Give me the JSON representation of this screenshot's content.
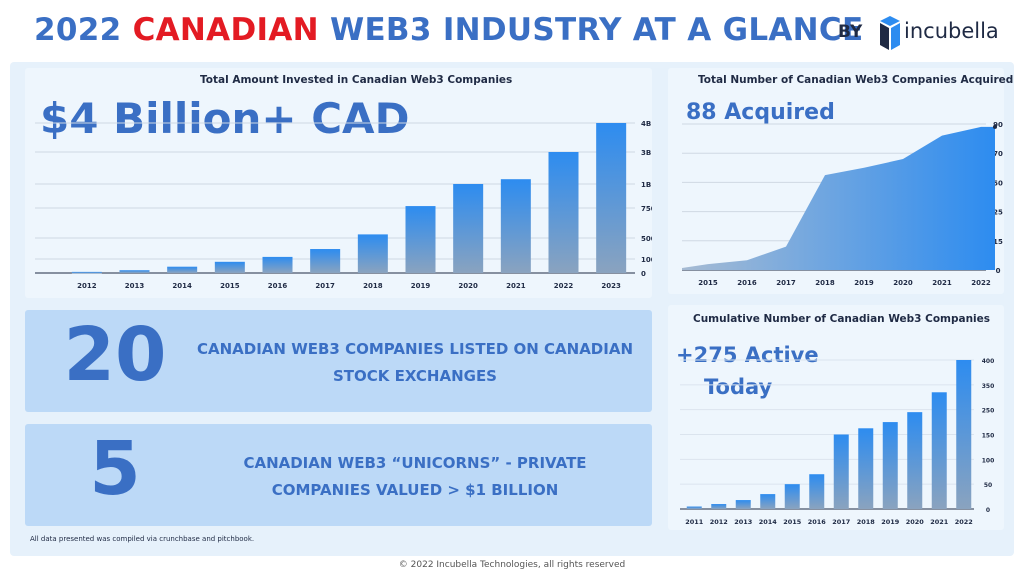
{
  "header": {
    "title_prefix": "2022",
    "title_highlight": "CANADIAN",
    "title_suffix": "WEB3 INDUSTRY AT A GLANCE",
    "by": "BY",
    "brand": "incubella"
  },
  "colors": {
    "title_blue": "#3a6fc4",
    "highlight_red": "#e31b23",
    "bar_top": "#2d8cf0",
    "bar_bottom": "#8aa3bf",
    "panel_bg": "#e6f1fb",
    "stat_bg": "#bcd9f7"
  },
  "stats": [
    {
      "number": "20",
      "line1": "CANADIAN WEB3 COMPANIES LISTED ON CANADIAN",
      "line2": "STOCK EXCHANGES"
    },
    {
      "number": "5",
      "line1": "CANADIAN WEB3 “UNICORNS” - PRIVATE",
      "line2": "COMPANIES VALUED > $1 BILLION"
    }
  ],
  "note": "All data presented was compiled via crunchbase and pitchbook.",
  "footer": "© 2022 Incubella Technologies, all rights reserved",
  "chart_data": [
    {
      "type": "bar",
      "title": "Total Amount Invested in Canadian Web3 Companies",
      "headline": "$4 Billion+ CAD",
      "categories": [
        "2012",
        "2013",
        "2014",
        "2015",
        "2016",
        "2017",
        "2018",
        "2019",
        "2020",
        "2021",
        "2022",
        "2023"
      ],
      "values": [
        8,
        20,
        45,
        80,
        140,
        290,
        530,
        770,
        1000,
        1300,
        3000,
        4000
      ],
      "y_scale": "non-linear (ticks unevenly spaced)",
      "yticks": [
        {
          "label": "4B",
          "value": 4000
        },
        {
          "label": "3B",
          "value": 3000
        },
        {
          "label": "1B",
          "value": 1000
        },
        {
          "label": "750M",
          "value": 750
        },
        {
          "label": "500M",
          "value": 500
        },
        {
          "label": "100M",
          "value": 100
        },
        {
          "label": "0",
          "value": 0
        }
      ],
      "grid": true,
      "axis_side": "right"
    },
    {
      "type": "area",
      "title": "Total Number of Canadian Web3 Companies Acquired",
      "headline": "88 Acquired",
      "x": [
        "2015",
        "2016",
        "2017",
        "2018",
        "2019",
        "2020",
        "2021",
        "2022"
      ],
      "values": [
        3,
        5,
        12,
        55,
        60,
        66,
        82,
        88
      ],
      "yticks": [
        {
          "label": "90",
          "value": 90
        },
        {
          "label": "70",
          "value": 70
        },
        {
          "label": "50",
          "value": 50
        },
        {
          "label": "25",
          "value": 25
        },
        {
          "label": "15",
          "value": 15
        },
        {
          "label": "0",
          "value": 0
        }
      ],
      "grid": true,
      "axis_side": "right"
    },
    {
      "type": "bar",
      "title": "Cumulative Number of Canadian Web3 Companies",
      "headline_line1": "+275 Active",
      "headline_line2": "Today",
      "categories": [
        "2011",
        "2012",
        "2013",
        "2014",
        "2015",
        "2016",
        "2017",
        "2018",
        "2019",
        "2020",
        "2021",
        "2022"
      ],
      "values": [
        5,
        10,
        18,
        30,
        50,
        70,
        150,
        175,
        200,
        240,
        320,
        400
      ],
      "yticks": [
        {
          "label": "400",
          "value": 400
        },
        {
          "label": "350",
          "value": 350
        },
        {
          "label": "250",
          "value": 250
        },
        {
          "label": "150",
          "value": 150
        },
        {
          "label": "100",
          "value": 100
        },
        {
          "label": "50",
          "value": 50
        },
        {
          "label": "0",
          "value": 0
        }
      ],
      "grid": true,
      "axis_side": "right"
    }
  ]
}
